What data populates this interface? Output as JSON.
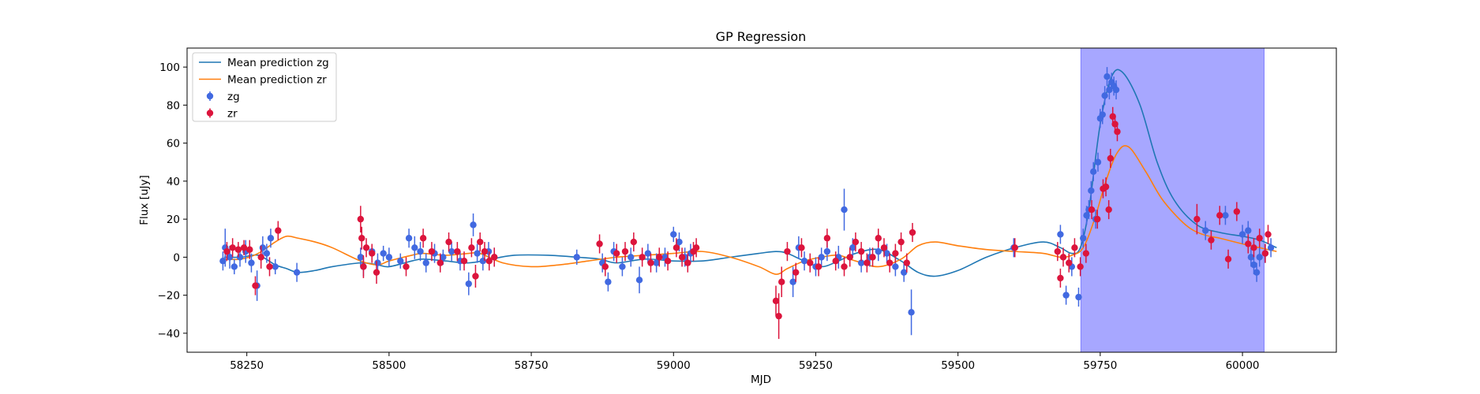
{
  "chart_data": {
    "type": "line",
    "title": "GP Regression",
    "xlabel": "MJD",
    "ylabel": "Flux [uJy]",
    "xlim": [
      58145,
      60165
    ],
    "ylim": [
      -50,
      110
    ],
    "xticks": [
      58250,
      58500,
      58750,
      59000,
      59250,
      59500,
      59750,
      60000
    ],
    "yticks": [
      -40,
      -20,
      0,
      20,
      40,
      60,
      80,
      100
    ],
    "grid": false,
    "legend_position": "top-left",
    "highlight_region": {
      "x": [
        59716,
        60038
      ],
      "color": "#a7a7ff"
    },
    "series": [
      {
        "name": "Mean prediction zg",
        "kind": "line",
        "color": "#1f77b4",
        "x": [
          58210,
          58240,
          58270,
          58300,
          58320,
          58340,
          58370,
          58400,
          58450,
          58480,
          58500,
          58540,
          58560,
          58600,
          58640,
          58680,
          58720,
          58780,
          58830,
          58870,
          58900,
          58950,
          59000,
          59050,
          59100,
          59150,
          59180,
          59200,
          59230,
          59260,
          59290,
          59320,
          59360,
          59400,
          59430,
          59460,
          59500,
          59550,
          59600,
          59650,
          59680,
          59700,
          59715,
          59730,
          59750,
          59770,
          59790,
          59820,
          59850,
          59880,
          59920,
          59960,
          60000,
          60030,
          60060
        ],
        "values": [
          0,
          0,
          1,
          -4,
          -6,
          -8,
          -7,
          -5,
          -3,
          -4,
          -5,
          -2,
          -1,
          -2,
          -3,
          -1,
          1,
          1,
          0,
          -1,
          -3,
          -1,
          -2,
          -2,
          0,
          2,
          3,
          2,
          -2,
          -5,
          -2,
          2,
          4,
          -2,
          -8,
          -10,
          -7,
          0,
          5,
          8,
          5,
          2,
          5,
          25,
          70,
          95,
          97,
          80,
          50,
          30,
          17,
          13,
          11,
          9,
          5
        ]
      },
      {
        "name": "Mean prediction zr",
        "kind": "line",
        "color": "#ff7f0e",
        "x": [
          58210,
          58240,
          58270,
          58300,
          58320,
          58340,
          58370,
          58400,
          58450,
          58480,
          58500,
          58540,
          58560,
          58600,
          58640,
          58660,
          58700,
          58750,
          58800,
          58850,
          58900,
          58950,
          59000,
          59050,
          59100,
          59150,
          59180,
          59200,
          59230,
          59260,
          59290,
          59320,
          59360,
          59400,
          59430,
          59460,
          59500,
          59550,
          59600,
          59650,
          59680,
          59700,
          59720,
          59740,
          59760,
          59780,
          59800,
          59830,
          59860,
          59900,
          59930,
          59960,
          60000,
          60030,
          60060
        ],
        "values": [
          -1,
          -1,
          2,
          8,
          11,
          10,
          8,
          5,
          -2,
          -4,
          -2,
          1,
          2,
          1,
          2,
          2,
          -3,
          -5,
          -4,
          -2,
          0,
          1,
          2,
          3,
          0,
          -5,
          -9,
          -6,
          -2,
          0,
          1,
          -2,
          -5,
          -1,
          6,
          8,
          6,
          4,
          3,
          2,
          0,
          1,
          5,
          20,
          40,
          55,
          58,
          45,
          30,
          17,
          12,
          10,
          7,
          5,
          3
        ]
      },
      {
        "name": "zg",
        "kind": "scatter",
        "color": "#4169e1",
        "x": [
          58208,
          58212,
          58220,
          58228,
          58238,
          58248,
          58258,
          58268,
          58278,
          58285,
          58292,
          58300,
          58338,
          58450,
          58455,
          58470,
          58480,
          58490,
          58500,
          58520,
          58535,
          58545,
          58555,
          58565,
          58580,
          58595,
          58610,
          58625,
          58640,
          58648,
          58655,
          58665,
          58675,
          58685,
          58830,
          58875,
          58885,
          58895,
          58910,
          58925,
          58940,
          58955,
          58970,
          58985,
          59000,
          59010,
          59020,
          59030,
          59210,
          59220,
          59230,
          59250,
          59260,
          59270,
          59290,
          59300,
          59315,
          59330,
          59345,
          59360,
          59375,
          59390,
          59405,
          59418,
          59598,
          59680,
          59690,
          59700,
          59712,
          59720,
          59726,
          59730,
          59734,
          59738,
          59742,
          59746,
          59750,
          59754,
          59758,
          59762,
          59766,
          59770,
          59774,
          59778,
          59935,
          59970,
          60000,
          60010,
          60015,
          60020,
          60025,
          60030,
          60040,
          60050
        ],
        "values": [
          -2,
          5,
          0,
          -5,
          0,
          3,
          -3,
          -15,
          5,
          2,
          10,
          -5,
          -8,
          0,
          -5,
          3,
          -3,
          2,
          0,
          -2,
          10,
          5,
          3,
          -3,
          2,
          0,
          3,
          -2,
          -14,
          17,
          2,
          -2,
          3,
          0,
          0,
          -3,
          -13,
          3,
          -5,
          0,
          -12,
          2,
          -3,
          0,
          12,
          8,
          0,
          2,
          -13,
          5,
          -2,
          -5,
          0,
          3,
          0,
          25,
          5,
          -3,
          0,
          3,
          2,
          -5,
          -8,
          -29,
          5,
          12,
          -20,
          -5,
          -21,
          10,
          22,
          25,
          35,
          45,
          20,
          50,
          73,
          75,
          85,
          95,
          88,
          92,
          90,
          88,
          14,
          22,
          12,
          14,
          0,
          -4,
          -8,
          0,
          2,
          5
        ],
        "errors": [
          5,
          10,
          6,
          4,
          5,
          6,
          5,
          8,
          6,
          5,
          5,
          4,
          5,
          5,
          5,
          4,
          5,
          4,
          5,
          4,
          5,
          6,
          5,
          5,
          5,
          4,
          5,
          5,
          6,
          6,
          5,
          5,
          5,
          5,
          4,
          5,
          5,
          5,
          5,
          5,
          7,
          5,
          5,
          5,
          4,
          5,
          5,
          5,
          8,
          6,
          5,
          5,
          5,
          5,
          6,
          11,
          5,
          5,
          5,
          5,
          5,
          5,
          5,
          12,
          5,
          5,
          5,
          5,
          5,
          5,
          5,
          5,
          5,
          5,
          5,
          5,
          5,
          5,
          5,
          5,
          5,
          5,
          5,
          5,
          5,
          5,
          5,
          5,
          5,
          5,
          5,
          5,
          5,
          5
        ]
      },
      {
        "name": "zr",
        "kind": "scatter",
        "color": "#dc143c",
        "x": [
          58215,
          58225,
          58235,
          58245,
          58255,
          58265,
          58275,
          58290,
          58305,
          58450,
          58452,
          58455,
          58460,
          58470,
          58478,
          58530,
          58560,
          58575,
          58590,
          58605,
          58620,
          58632,
          58645,
          58652,
          58660,
          58668,
          58676,
          58685,
          58870,
          58880,
          58900,
          58915,
          58930,
          58945,
          58960,
          58975,
          58990,
          59005,
          59015,
          59025,
          59035,
          59040,
          59180,
          59185,
          59190,
          59200,
          59215,
          59225,
          59240,
          59255,
          59270,
          59285,
          59300,
          59310,
          59320,
          59330,
          59340,
          59350,
          59360,
          59370,
          59380,
          59390,
          59400,
          59410,
          59420,
          59600,
          59675,
          59680,
          59685,
          59695,
          59705,
          59715,
          59725,
          59735,
          59745,
          59755,
          59760,
          59765,
          59768,
          59772,
          59776,
          59780,
          59920,
          59945,
          59960,
          59975,
          59990,
          60010,
          60020,
          60030,
          60040,
          60045
        ],
        "values": [
          3,
          5,
          4,
          5,
          4,
          -15,
          0,
          -5,
          14,
          20,
          10,
          -5,
          5,
          2,
          -8,
          -5,
          10,
          3,
          -3,
          8,
          3,
          -2,
          5,
          -10,
          8,
          3,
          -2,
          0,
          7,
          -5,
          2,
          3,
          8,
          0,
          -3,
          0,
          -2,
          5,
          0,
          -3,
          3,
          5,
          -23,
          -31,
          -13,
          3,
          -8,
          5,
          -3,
          -5,
          10,
          -2,
          -5,
          0,
          8,
          3,
          -3,
          0,
          10,
          5,
          -3,
          2,
          8,
          -3,
          13,
          5,
          3,
          -11,
          0,
          -3,
          5,
          -5,
          2,
          25,
          20,
          36,
          37,
          25,
          52,
          74,
          70,
          66,
          20,
          9,
          22,
          -1,
          24,
          7,
          5,
          10,
          2,
          12
        ],
        "errors": [
          5,
          5,
          4,
          4,
          5,
          5,
          6,
          5,
          5,
          7,
          6,
          6,
          5,
          5,
          6,
          5,
          5,
          5,
          5,
          5,
          5,
          5,
          5,
          6,
          5,
          5,
          5,
          5,
          5,
          5,
          5,
          5,
          5,
          5,
          5,
          5,
          5,
          5,
          5,
          5,
          5,
          5,
          8,
          12,
          8,
          5,
          5,
          5,
          5,
          5,
          5,
          5,
          5,
          5,
          5,
          5,
          5,
          5,
          5,
          5,
          5,
          5,
          5,
          5,
          5,
          5,
          5,
          5,
          5,
          5,
          5,
          5,
          5,
          5,
          5,
          5,
          5,
          5,
          5,
          5,
          5,
          5,
          8,
          5,
          5,
          5,
          5,
          5,
          5,
          5,
          5,
          5
        ]
      }
    ]
  }
}
